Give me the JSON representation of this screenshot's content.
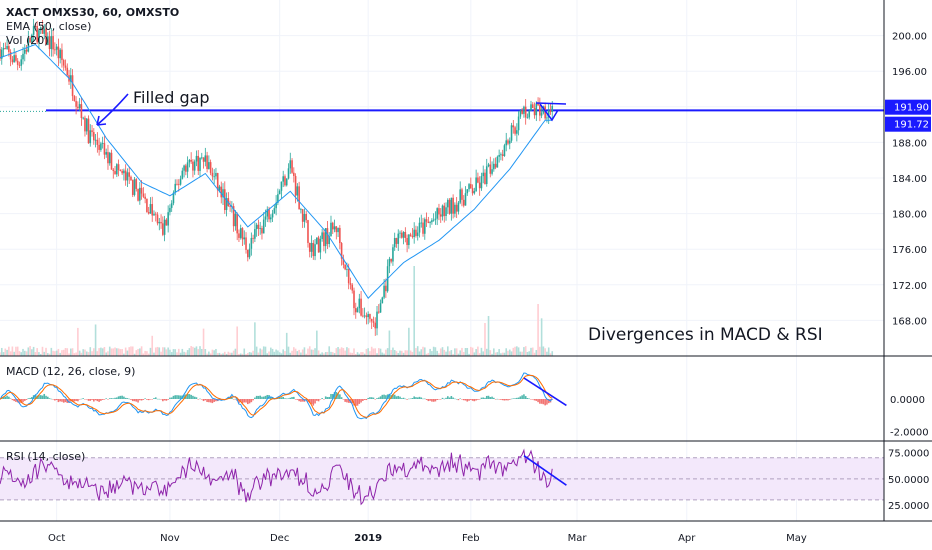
{
  "chart_data": [
    {
      "type": "candlestick",
      "panel": "price",
      "legend": [
        "XACT OMXS30, 60, OMXSTO",
        "EMA (50, close)",
        "Vol (20)"
      ],
      "ylim": [
        164,
        204
      ],
      "y_ticks": [
        "200.00",
        "196.00",
        "192.00",
        "188.00",
        "184.00",
        "180.00",
        "176.00",
        "172.00",
        "168.00"
      ],
      "y_tick_values": [
        200,
        196,
        192,
        188,
        184,
        180,
        176,
        172,
        168
      ],
      "last_price": "191.90",
      "ema_value": "191.72",
      "horizontal_level": 191.6,
      "annotations": [
        "Filled gap",
        "Divergences in MACD & RSI"
      ],
      "key_points": [
        {
          "t": 0,
          "v": 198.5
        },
        {
          "t": 5,
          "v": 197.0
        },
        {
          "t": 10,
          "v": 200.5
        },
        {
          "t": 15,
          "v": 199.0
        },
        {
          "t": 19,
          "v": 196.0
        },
        {
          "t": 25,
          "v": 189.0
        },
        {
          "t": 33,
          "v": 185.0
        },
        {
          "t": 40,
          "v": 182.0
        },
        {
          "t": 46,
          "v": 178.0
        },
        {
          "t": 52,
          "v": 185.5
        },
        {
          "t": 58,
          "v": 186.0
        },
        {
          "t": 64,
          "v": 181.0
        },
        {
          "t": 70,
          "v": 176.0
        },
        {
          "t": 77,
          "v": 181.0
        },
        {
          "t": 82,
          "v": 185.5
        },
        {
          "t": 88,
          "v": 176.0
        },
        {
          "t": 95,
          "v": 178.5
        },
        {
          "t": 100,
          "v": 170.0
        },
        {
          "t": 106,
          "v": 167.5
        },
        {
          "t": 112,
          "v": 177.0
        },
        {
          "t": 120,
          "v": 178.5
        },
        {
          "t": 128,
          "v": 181.0
        },
        {
          "t": 136,
          "v": 183.5
        },
        {
          "t": 142,
          "v": 187.5
        },
        {
          "t": 148,
          "v": 191.5
        },
        {
          "t": 154,
          "v": 191.8
        }
      ],
      "ema_points": [
        {
          "t": 0,
          "v": 197.5
        },
        {
          "t": 10,
          "v": 199.0
        },
        {
          "t": 20,
          "v": 195.0
        },
        {
          "t": 30,
          "v": 188.5
        },
        {
          "t": 40,
          "v": 183.5
        },
        {
          "t": 48,
          "v": 182.0
        },
        {
          "t": 58,
          "v": 184.5
        },
        {
          "t": 70,
          "v": 178.5
        },
        {
          "t": 82,
          "v": 182.5
        },
        {
          "t": 92,
          "v": 178.0
        },
        {
          "t": 104,
          "v": 170.5
        },
        {
          "t": 114,
          "v": 174.5
        },
        {
          "t": 124,
          "v": 177.0
        },
        {
          "t": 134,
          "v": 180.5
        },
        {
          "t": 144,
          "v": 185.0
        },
        {
          "t": 154,
          "v": 190.5
        }
      ]
    },
    {
      "type": "line",
      "panel": "macd",
      "legend": "MACD (12, 26, close, 9)",
      "ylim": [
        -2.6,
        2.6
      ],
      "y_ticks": [
        "0.0000",
        "-2.0000"
      ],
      "y_tick_values": [
        0,
        -2
      ],
      "divergence_line": [
        {
          "t": 148,
          "v": 1.3
        },
        {
          "t": 160,
          "v": -0.4
        }
      ]
    },
    {
      "type": "line",
      "panel": "rsi",
      "legend": "RSI (14, close)",
      "ylim": [
        10,
        85
      ],
      "y_ticks": [
        "75.0000",
        "50.0000",
        "25.0000"
      ],
      "y_tick_values": [
        75,
        50,
        25
      ],
      "band": [
        30,
        70
      ],
      "divergence_line": [
        {
          "t": 148,
          "v": 72
        },
        {
          "t": 160,
          "v": 44
        }
      ]
    }
  ],
  "x_axis": {
    "labels": [
      "Oct",
      "Nov",
      "Dec",
      "2019",
      "Feb",
      "Mar",
      "Apr",
      "May"
    ],
    "label_t": [
      16,
      48,
      79,
      104,
      133,
      163,
      194,
      225
    ],
    "t_range": [
      0,
      250
    ]
  },
  "colors": {
    "up": "#26a69a",
    "down": "#ef5350",
    "ema": "#2196f3",
    "level": "#1a1aff",
    "macd": "#2196f3",
    "signal": "#ff6d00",
    "rsi": "#8e24aa",
    "rsi_band": "#f3e8fb",
    "divergence": "#1a1aff",
    "price_badge": "#1a1aff",
    "ema_badge": "#1a1aff"
  }
}
